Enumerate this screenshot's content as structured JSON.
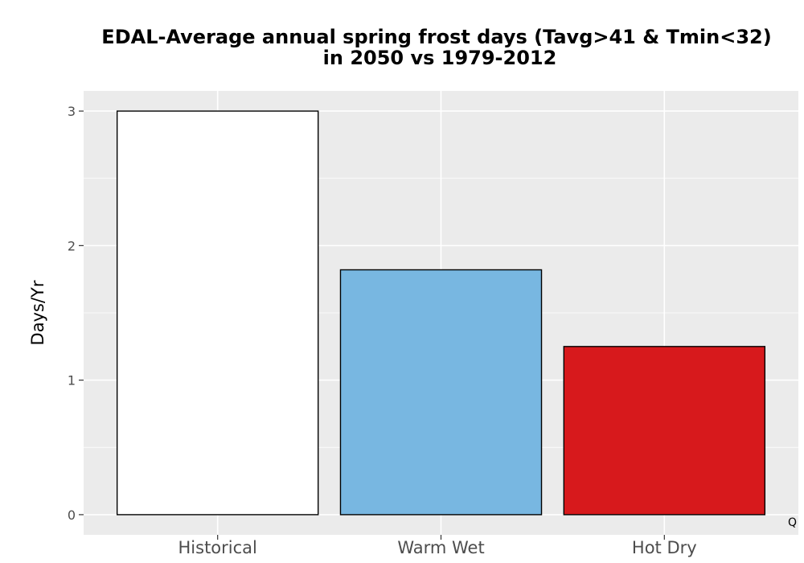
{
  "chart_data": {
    "type": "bar",
    "title_lines": [
      "EDAL-Average annual spring frost days (Tavg>41 & Tmin<32)",
      "in 2050 vs 1979-2012"
    ],
    "xlabel": "",
    "ylabel": "Days/Yr",
    "categories": [
      "Historical",
      "Warm Wet",
      "Hot Dry"
    ],
    "values": [
      3.0,
      1.82,
      1.25
    ],
    "bar_colors": [
      "#ffffff",
      "#78b7e1",
      "#d7191c"
    ],
    "bar_outline": "#000000",
    "yticks": [
      0,
      1,
      2,
      3
    ],
    "ylim": [
      -0.15,
      3.15
    ],
    "grid": true,
    "legend": "none",
    "panel_background": "#ebebeb",
    "gridline_color": "#ffffff",
    "corner_label": "Q"
  }
}
